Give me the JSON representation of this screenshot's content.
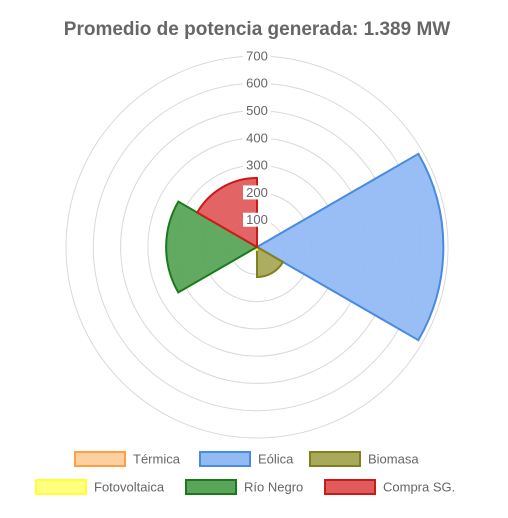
{
  "chart_data": {
    "type": "polarArea",
    "title": "Promedio de potencia generada: 1.389 MW",
    "categories": [
      "Térmica",
      "Eólica",
      "Biomasa",
      "Fotovoltaica",
      "Río Negro",
      "Compra SG."
    ],
    "values": [
      0,
      683,
      110,
      10,
      333,
      253
    ],
    "colors": [
      "#ff9f40",
      "#4a8ae0",
      "#808020",
      "#ffff33",
      "#1a7a1a",
      "#cc1a1a"
    ],
    "fills": [
      "#ffcf9f",
      "#92bbf4",
      "#a9a95a",
      "#ffff80",
      "#5aa55a",
      "#e05c5c"
    ],
    "rlim": [
      0,
      700
    ],
    "rticks": [
      100,
      200,
      300,
      400,
      500,
      600,
      700
    ],
    "grid": true
  }
}
